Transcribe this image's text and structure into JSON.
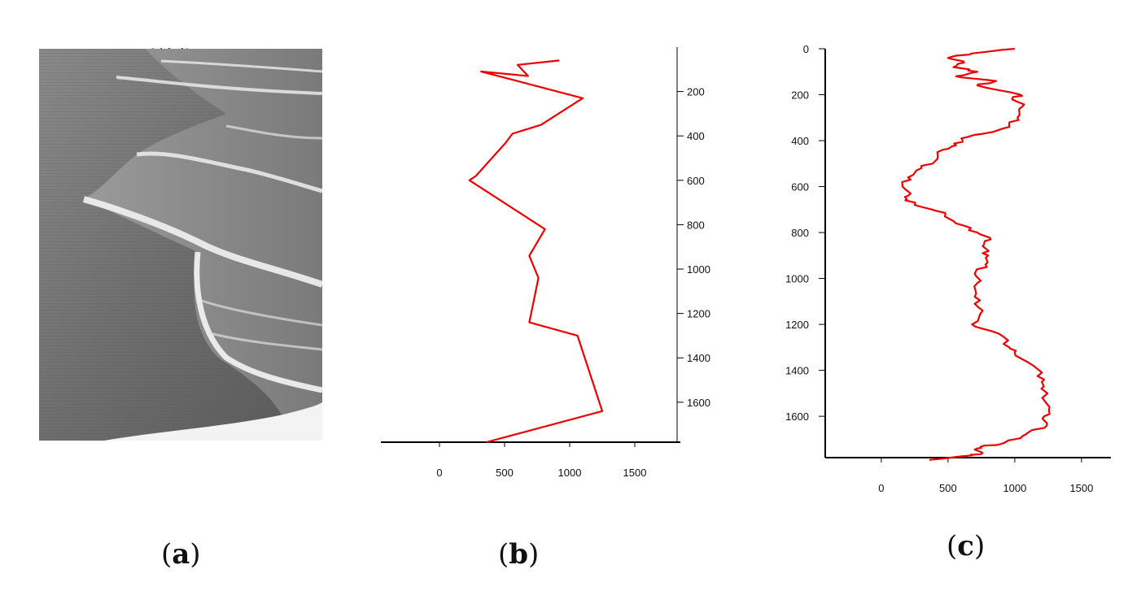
{
  "panels": {
    "a": {
      "label": "a",
      "title": "Original Image"
    },
    "b": {
      "label": "b"
    },
    "c": {
      "label": "c"
    }
  },
  "colors": {
    "line": "#ee0000",
    "axis": "#000000"
  },
  "chart_data": [
    {
      "type": "line",
      "panel": "b",
      "orientation": "x-horizontal, y-vertical inverted (0 at top)",
      "x_ticks": [
        0,
        500,
        1000,
        1500
      ],
      "y_ticks": [
        200,
        400,
        600,
        800,
        1000,
        1200,
        1400,
        1600
      ],
      "xlim": [
        -450,
        1850
      ],
      "ylim": [
        0,
        1780
      ],
      "series": [
        {
          "x": [
            920,
            600,
            680,
            320,
            1100,
            780,
            560,
            510,
            280,
            230,
            810,
            690,
            760,
            690,
            1060,
            1250,
            360
          ],
          "y": [
            60,
            80,
            130,
            110,
            230,
            350,
            390,
            430,
            580,
            600,
            820,
            940,
            1040,
            1240,
            1300,
            1640,
            1780
          ]
        }
      ]
    },
    {
      "type": "line",
      "panel": "c",
      "orientation": "x-horizontal, y-vertical inverted (0 at top)",
      "x_ticks": [
        0,
        500,
        1000,
        1500
      ],
      "y_ticks": [
        0,
        200,
        400,
        600,
        800,
        1000,
        1200,
        1400,
        1600
      ],
      "xlim": [
        -420,
        1720
      ],
      "ylim": [
        0,
        1780
      ],
      "series": [
        {
          "x": [
            1000,
            680,
            500,
            620,
            540,
            720,
            560,
            860,
            720,
            1040,
            980,
            1060,
            1020,
            960,
            760,
            600,
            560,
            460,
            420,
            300,
            200,
            160,
            200,
            180,
            380,
            480,
            560,
            720,
            820,
            760,
            800,
            780,
            700,
            720,
            700,
            760,
            680,
            880,
            960,
            1000,
            1140,
            1220,
            1200,
            1260,
            1220,
            1240,
            1080,
            1000,
            900,
            760,
            720,
            760,
            680,
            360
          ],
          "y": [
            0,
            20,
            40,
            60,
            80,
            100,
            120,
            140,
            160,
            200,
            220,
            250,
            300,
            340,
            370,
            390,
            420,
            440,
            480,
            520,
            560,
            600,
            640,
            660,
            700,
            720,
            760,
            800,
            830,
            860,
            900,
            940,
            980,
            1020,
            1080,
            1140,
            1200,
            1240,
            1300,
            1320,
            1380,
            1440,
            1480,
            1560,
            1600,
            1640,
            1680,
            1700,
            1720,
            1730,
            1740,
            1760,
            1770,
            1790
          ]
        }
      ]
    }
  ]
}
